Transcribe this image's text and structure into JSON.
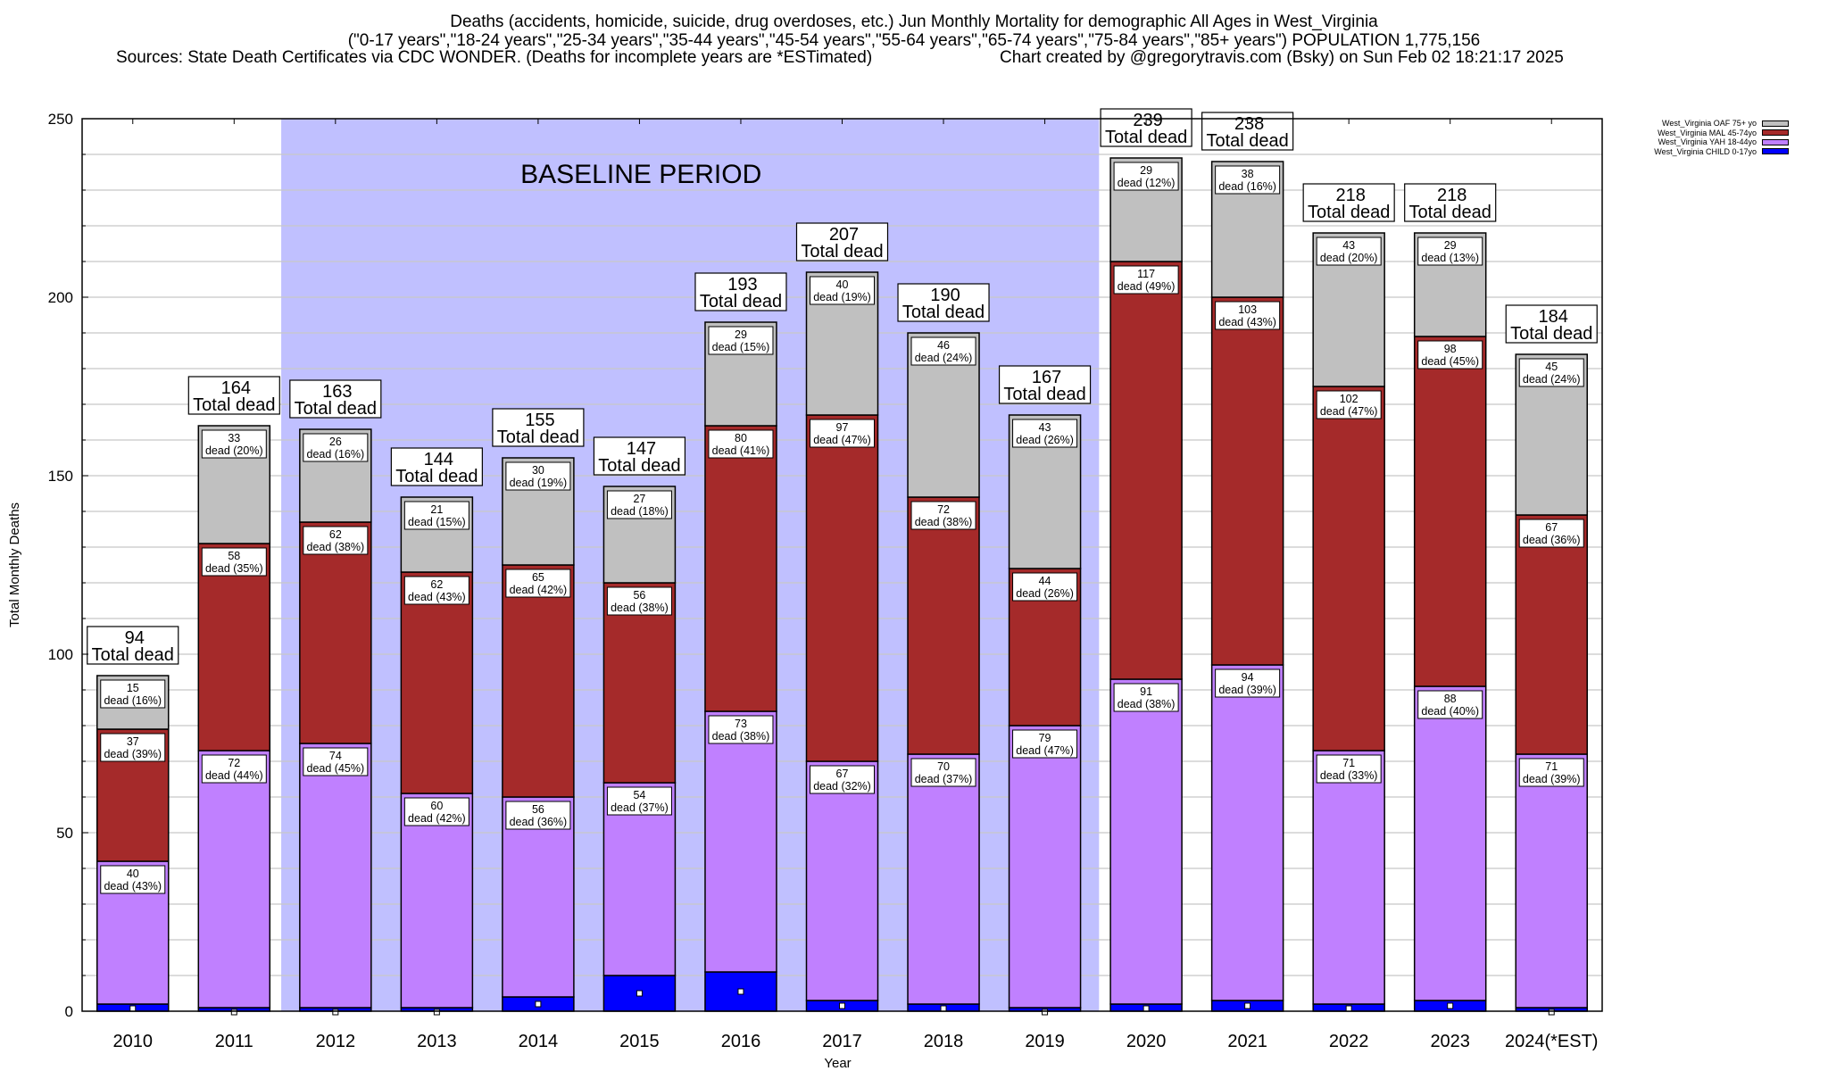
{
  "header": {
    "title": "Deaths (accidents, homicide, suicide, drug overdoses, etc.) Jun Monthly Mortality for demographic All Ages in West_Virginia",
    "subtitle": "(\"0-17 years\",\"18-24 years\",\"25-34 years\",\"35-44 years\",\"45-54 years\",\"55-64 years\",\"65-74 years\",\"75-84 years\",\"85+ years\") POPULATION 1,775,156",
    "sources": "Sources: State Death Certificates via CDC WONDER. (Deaths for incomplete years are *ESTimated)",
    "credit": "Chart created by @gregorytravis.com (Bsky) on Sun Feb 02 18:21:17 2025"
  },
  "legend": [
    {
      "label": "West_Virginia OAF 75+ yo",
      "color": "#c0c0c0"
    },
    {
      "label": "West_Virginia MAL 45-74yo",
      "color": "#a52a2a"
    },
    {
      "label": "West_Virginia YAH 18-44yo",
      "color": "#c080ff"
    },
    {
      "label": "West_Virginia CHILD 0-17yo",
      "color": "#0000ff"
    }
  ],
  "chart_data": {
    "type": "bar",
    "stacked": true,
    "title": "Deaths (accidents, homicide, suicide, drug overdoses, etc.) Jun Monthly Mortality for demographic All Ages in West_Virginia",
    "xlabel": "Year",
    "ylabel": "Total Monthly Deaths",
    "ylim": [
      0,
      250
    ],
    "yticks": [
      0,
      50,
      100,
      150,
      200,
      250
    ],
    "grid": true,
    "legend_position": "top-right",
    "categories": [
      "2010",
      "2011",
      "2012",
      "2013",
      "2014",
      "2015",
      "2016",
      "2017",
      "2018",
      "2019",
      "2020",
      "2021",
      "2022",
      "2023",
      "2024(*EST)"
    ],
    "series": [
      {
        "name": "West_Virginia CHILD 0-17yo",
        "color": "#0000ff",
        "values": [
          2,
          1,
          1,
          1,
          4,
          10,
          11,
          3,
          2,
          1,
          2,
          3,
          2,
          3,
          1
        ]
      },
      {
        "name": "West_Virginia YAH 18-44yo",
        "color": "#c080ff",
        "values": [
          40,
          72,
          74,
          60,
          56,
          54,
          73,
          67,
          70,
          79,
          91,
          94,
          71,
          88,
          71
        ],
        "pct": [
          43,
          44,
          45,
          42,
          36,
          37,
          38,
          32,
          37,
          47,
          38,
          39,
          33,
          40,
          39
        ]
      },
      {
        "name": "West_Virginia MAL 45-74yo",
        "color": "#a52a2a",
        "values": [
          37,
          58,
          62,
          62,
          65,
          56,
          80,
          97,
          72,
          44,
          117,
          103,
          102,
          98,
          67
        ],
        "pct": [
          39,
          35,
          38,
          43,
          42,
          38,
          41,
          47,
          38,
          26,
          49,
          43,
          47,
          45,
          36
        ]
      },
      {
        "name": "West_Virginia OAF 75+ yo",
        "color": "#c0c0c0",
        "values": [
          15,
          33,
          26,
          21,
          30,
          27,
          29,
          40,
          46,
          43,
          29,
          38,
          43,
          29,
          45
        ],
        "pct": [
          16,
          20,
          16,
          15,
          19,
          18,
          15,
          19,
          24,
          26,
          12,
          16,
          20,
          13,
          24
        ]
      }
    ],
    "totals": [
      94,
      164,
      163,
      144,
      155,
      147,
      193,
      207,
      190,
      167,
      239,
      238,
      218,
      218,
      184
    ],
    "total_label_suffix": "Total dead",
    "segment_label_word": "dead",
    "annotation": {
      "text": "BASELINE PERIOD",
      "from_category": "2012",
      "to_category": "2019",
      "color": "#c0c0ff"
    }
  }
}
